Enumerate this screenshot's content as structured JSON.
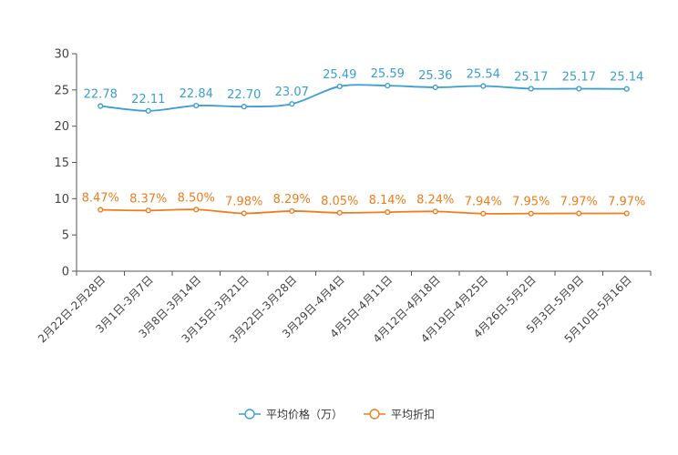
{
  "chart_data": {
    "type": "line",
    "title": "",
    "xlabel": "",
    "ylabel": "",
    "ylim": [
      0,
      30
    ],
    "yticks": [
      0,
      5,
      10,
      15,
      20,
      25,
      30
    ],
    "categories": [
      "2月22日-2月28日",
      "3月1日-3月7日",
      "3月8日-3月14日",
      "3月15日-3月21日",
      "3月22日-3月28日",
      "3月29日-4月4日",
      "4月5日-4月11日",
      "4月12日-4月18日",
      "4月19日-4月25日",
      "4月26日-5月2日",
      "5月3日-5月9日",
      "5月10日-5月16日"
    ],
    "series": [
      {
        "name": "平均价格（万）",
        "color": "#3a9fd0",
        "values": [
          22.78,
          22.11,
          22.84,
          22.7,
          23.07,
          25.49,
          25.59,
          25.36,
          25.54,
          25.17,
          25.17,
          25.14
        ],
        "labels": [
          "22.78",
          "22.11",
          "22.84",
          "22.70",
          "23.07",
          "25.49",
          "25.59",
          "25.36",
          "25.54",
          "25.17",
          "25.17",
          "25.14"
        ]
      },
      {
        "name": "平均折扣",
        "color": "#f07d1c",
        "values": [
          8.47,
          8.37,
          8.5,
          7.98,
          8.29,
          8.05,
          8.14,
          8.24,
          7.94,
          7.95,
          7.97,
          7.97
        ],
        "labels": [
          "8.47%",
          "8.37%",
          "8.50%",
          "7.98%",
          "8.29%",
          "8.05%",
          "8.14%",
          "8.24%",
          "7.94%",
          "7.95%",
          "7.97%",
          "7.97%"
        ]
      }
    ],
    "legend": "bottom-center",
    "grid": false
  },
  "colors": {
    "axis": "#555555",
    "tick_text": "#444444"
  }
}
